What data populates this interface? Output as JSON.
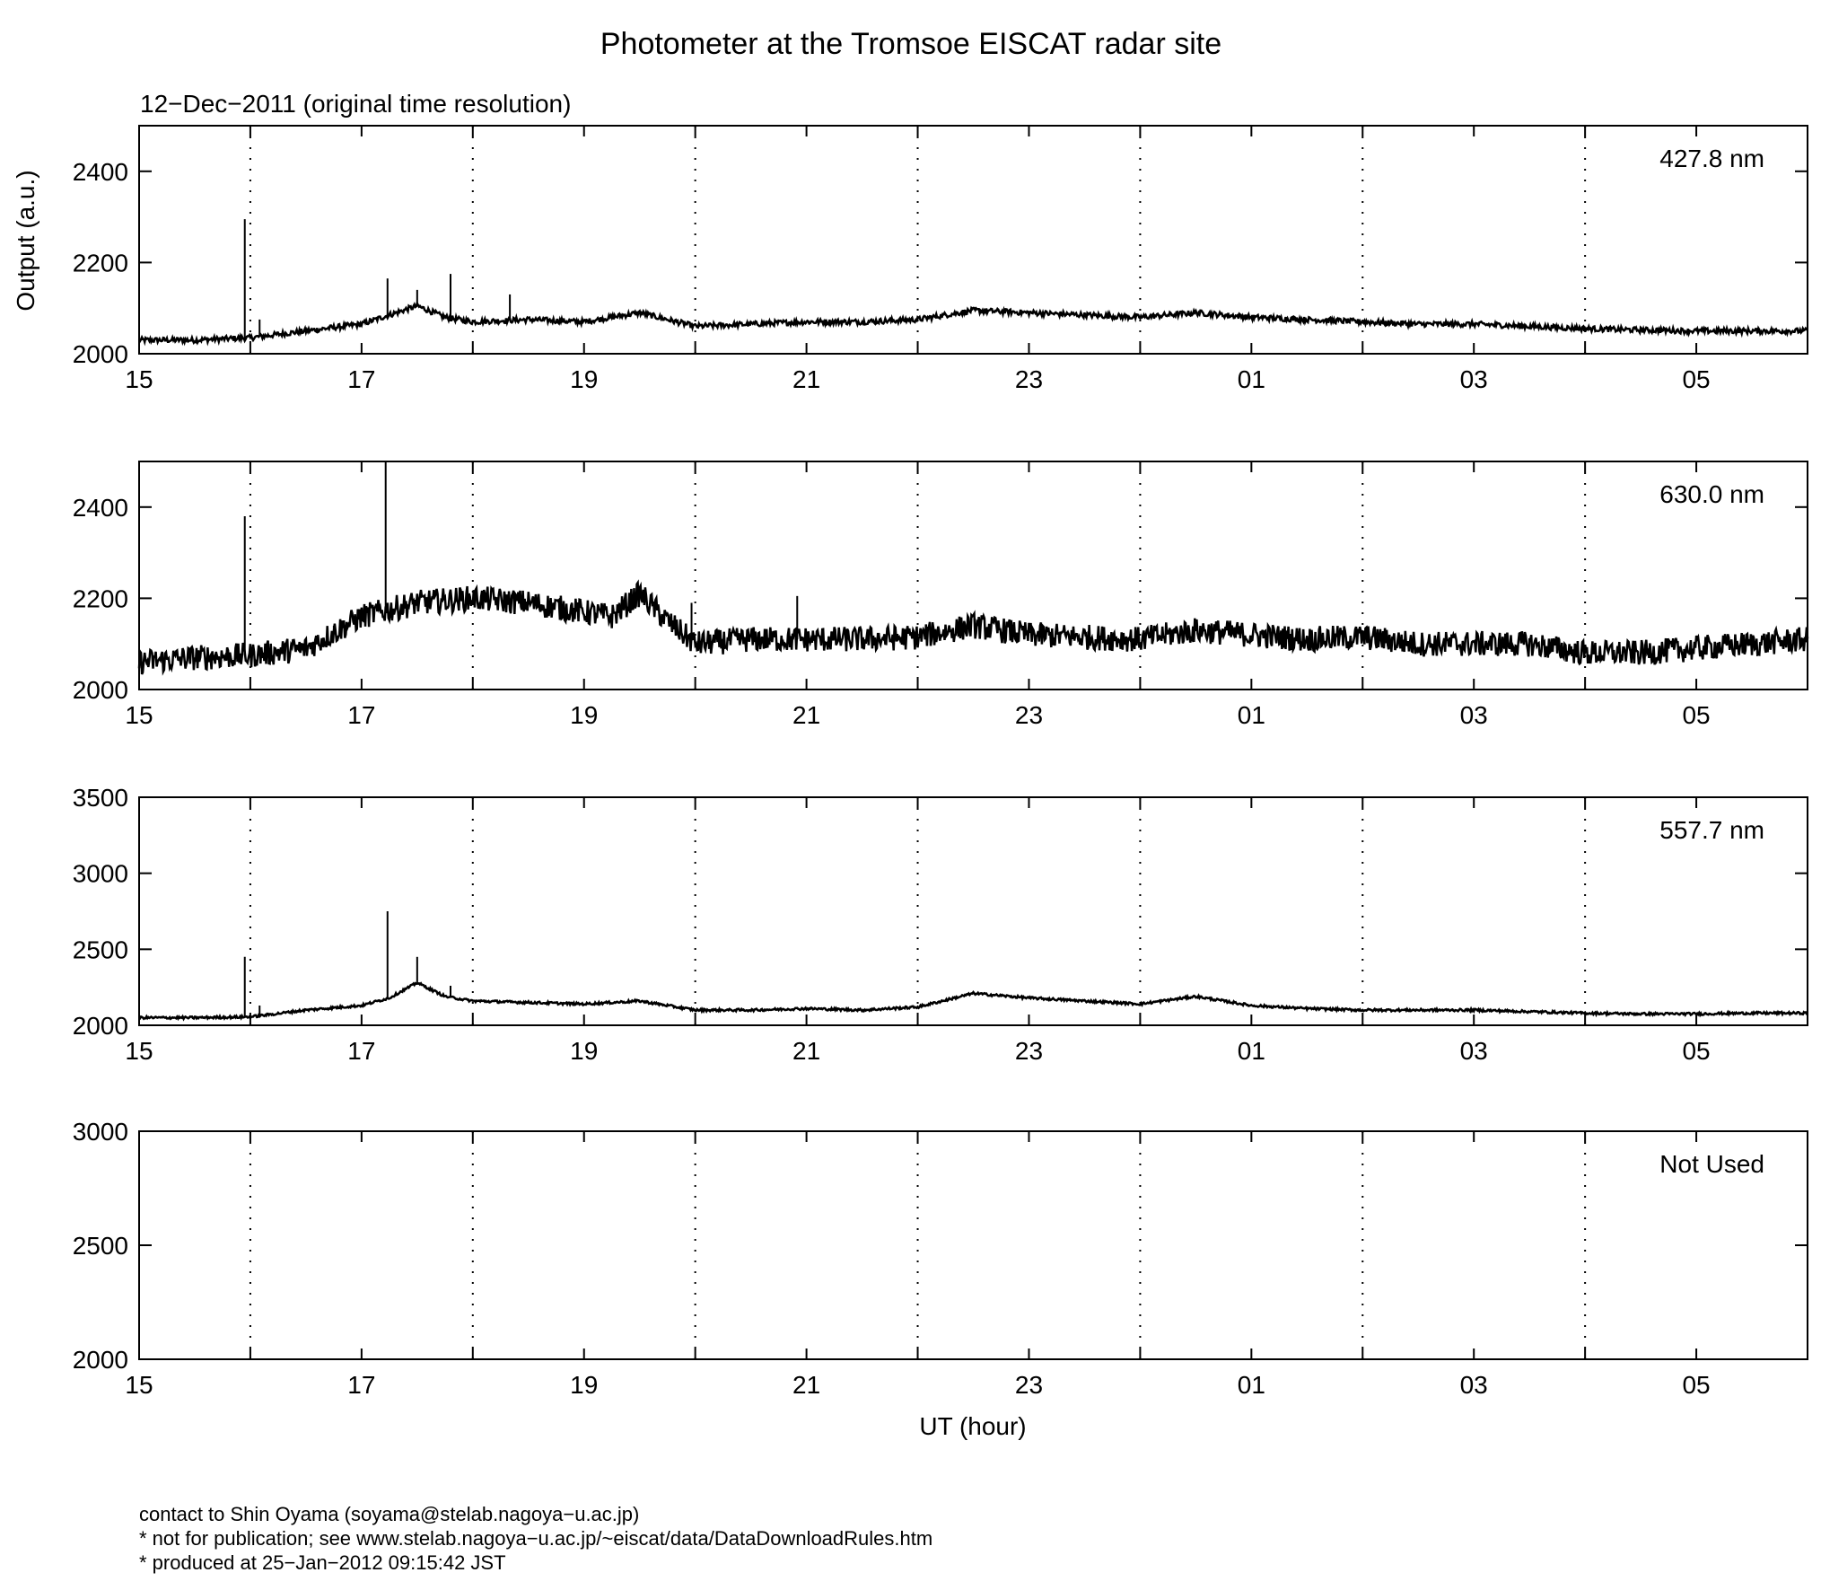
{
  "title": "Photometer at the Tromsoe EISCAT radar site",
  "subtitle": "12−Dec−2011 (original time resolution)",
  "ylabel": "Output (a.u.)",
  "xlabel": "UT (hour)",
  "footer": {
    "line1": "contact to Shin Oyama (soyama@stelab.nagoya−u.ac.jp)",
    "line2": "* not for publication; see www.stelab.nagoya−u.ac.jp/~eiscat/data/DataDownloadRules.htm",
    "line3": "* produced at 25−Jan−2012 09:15:42 JST"
  },
  "chart_data": [
    {
      "type": "line",
      "panel_label": "427.8 nm",
      "xlim": [
        "15:00",
        "06:00"
      ],
      "x_tick_labels": [
        "15",
        "17",
        "19",
        "21",
        "23",
        "01",
        "03",
        "05"
      ],
      "ylim": [
        2000,
        2500
      ],
      "y_ticks": [
        2000,
        2200,
        2400
      ],
      "grid": "dotted vertical lines every hour",
      "series": [
        {
          "x": [
            "15:00",
            "15:30",
            "16:00",
            "16:30",
            "17:00",
            "17:15",
            "17:30",
            "17:45",
            "18:00",
            "18:30",
            "19:00",
            "19:30",
            "20:00",
            "20:30",
            "21:00",
            "21:30",
            "22:00",
            "22:30",
            "23:00",
            "23:30",
            "00:00",
            "00:30",
            "01:00",
            "01:30",
            "02:00",
            "02:30",
            "03:00",
            "03:30",
            "04:00",
            "04:30",
            "05:00",
            "05:30",
            "06:00"
          ],
          "y": [
            2030,
            2030,
            2035,
            2050,
            2065,
            2085,
            2105,
            2080,
            2070,
            2075,
            2070,
            2090,
            2060,
            2065,
            2070,
            2070,
            2075,
            2095,
            2090,
            2085,
            2080,
            2090,
            2080,
            2075,
            2070,
            2065,
            2065,
            2060,
            2055,
            2052,
            2050,
            2050,
            2050
          ],
          "noise": 6
        }
      ],
      "spikes": [
        {
          "x": "15:57",
          "y": 2295
        },
        {
          "x": "16:05",
          "y": 2075
        },
        {
          "x": "17:14",
          "y": 2165
        },
        {
          "x": "17:30",
          "y": 2140
        },
        {
          "x": "17:48",
          "y": 2175
        },
        {
          "x": "18:20",
          "y": 2130
        }
      ]
    },
    {
      "type": "line",
      "panel_label": "630.0 nm",
      "xlim": [
        "15:00",
        "06:00"
      ],
      "x_tick_labels": [
        "15",
        "17",
        "19",
        "21",
        "23",
        "01",
        "03",
        "05"
      ],
      "ylim": [
        2000,
        2500
      ],
      "y_ticks": [
        2000,
        2200,
        2400
      ],
      "grid": "dotted vertical lines every hour",
      "series": [
        {
          "x": [
            "15:00",
            "15:30",
            "16:00",
            "16:30",
            "17:00",
            "17:30",
            "18:00",
            "18:30",
            "19:00",
            "19:15",
            "19:30",
            "19:45",
            "20:00",
            "20:30",
            "21:00",
            "21:30",
            "22:00",
            "22:30",
            "23:00",
            "23:30",
            "00:00",
            "00:30",
            "01:00",
            "01:30",
            "02:00",
            "02:30",
            "03:00",
            "03:30",
            "04:00",
            "04:30",
            "05:00",
            "05:30",
            "06:00"
          ],
          "y": [
            2060,
            2070,
            2075,
            2090,
            2160,
            2190,
            2200,
            2190,
            2170,
            2160,
            2210,
            2150,
            2100,
            2110,
            2110,
            2110,
            2115,
            2140,
            2120,
            2115,
            2110,
            2130,
            2120,
            2110,
            2115,
            2100,
            2100,
            2100,
            2080,
            2080,
            2090,
            2100,
            2110
          ],
          "noise": 28
        }
      ],
      "spikes": [
        {
          "x": "15:57",
          "y": 2380
        },
        {
          "x": "17:13",
          "y": 2500
        },
        {
          "x": "16:45",
          "y": 2140
        },
        {
          "x": "19:58",
          "y": 2190
        },
        {
          "x": "20:55",
          "y": 2205
        }
      ]
    },
    {
      "type": "line",
      "panel_label": "557.7 nm",
      "xlim": [
        "15:00",
        "06:00"
      ],
      "x_tick_labels": [
        "15",
        "17",
        "19",
        "21",
        "23",
        "01",
        "03",
        "05"
      ],
      "ylim": [
        2000,
        3500
      ],
      "y_ticks": [
        2000,
        2500,
        3000,
        3500
      ],
      "grid": "dotted vertical lines every hour",
      "series": [
        {
          "x": [
            "15:00",
            "15:30",
            "16:00",
            "16:30",
            "17:00",
            "17:15",
            "17:30",
            "17:45",
            "18:00",
            "18:30",
            "19:00",
            "19:30",
            "20:00",
            "20:30",
            "21:00",
            "21:30",
            "22:00",
            "22:30",
            "23:00",
            "23:30",
            "00:00",
            "00:30",
            "01:00",
            "01:30",
            "02:00",
            "02:30",
            "03:00",
            "03:30",
            "04:00",
            "04:30",
            "05:00",
            "05:30",
            "06:00"
          ],
          "y": [
            2050,
            2050,
            2055,
            2100,
            2130,
            2180,
            2280,
            2190,
            2160,
            2150,
            2140,
            2160,
            2100,
            2100,
            2110,
            2100,
            2120,
            2210,
            2180,
            2160,
            2140,
            2190,
            2130,
            2110,
            2100,
            2100,
            2100,
            2090,
            2080,
            2075,
            2075,
            2080,
            2080
          ],
          "noise": 8
        }
      ],
      "spikes": [
        {
          "x": "15:57",
          "y": 2450
        },
        {
          "x": "16:05",
          "y": 2130
        },
        {
          "x": "17:14",
          "y": 2750
        },
        {
          "x": "17:30",
          "y": 2450
        },
        {
          "x": "17:48",
          "y": 2260
        }
      ]
    },
    {
      "type": "line",
      "panel_label": "Not Used",
      "xlim": [
        "15:00",
        "06:00"
      ],
      "x_tick_labels": [
        "15",
        "17",
        "19",
        "21",
        "23",
        "01",
        "03",
        "05"
      ],
      "ylim": [
        2000,
        3000
      ],
      "y_ticks": [
        2000,
        2500,
        3000
      ],
      "grid": "dotted vertical lines every hour",
      "series": []
    }
  ]
}
